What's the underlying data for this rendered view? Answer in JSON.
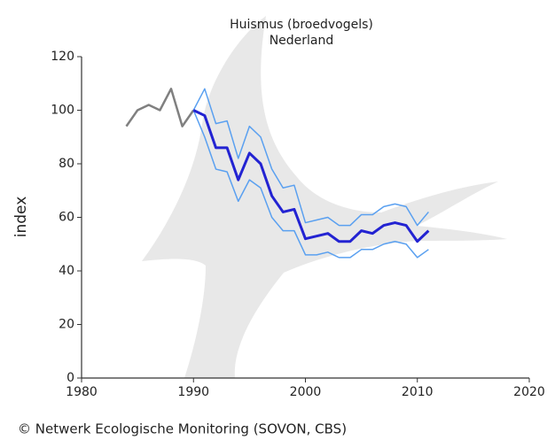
{
  "chart_data": {
    "type": "line",
    "title": "Huismus (broedvogels)",
    "subtitle": "Nederland",
    "y_label": "index",
    "footer": "© Netwerk Ecologische Monitoring (SOVON, CBS)",
    "x": [
      1984,
      1985,
      1986,
      1987,
      1988,
      1989,
      1990,
      1991,
      1992,
      1993,
      1994,
      1995,
      1996,
      1997,
      1998,
      1999,
      2000,
      2001,
      2002,
      2003,
      2004,
      2005,
      2006,
      2007,
      2008,
      2009,
      2010,
      2011
    ],
    "series": [
      {
        "color": "#808080",
        "width": 2.5,
        "values": [
          94,
          100,
          102,
          100,
          108,
          94,
          100,
          null,
          null,
          null,
          null,
          null,
          null,
          null,
          null,
          null,
          null,
          null,
          null,
          null,
          null,
          null,
          null,
          null,
          null,
          null,
          null,
          null
        ]
      },
      {
        "color": "#5aa0f0",
        "width": 1.5,
        "values": [
          null,
          null,
          null,
          null,
          null,
          null,
          100,
          108,
          95,
          96,
          82,
          94,
          90,
          78,
          71,
          72,
          58,
          59,
          60,
          57,
          57,
          61,
          61,
          64,
          65,
          64,
          57,
          62
        ]
      },
      {
        "color": "#5aa0f0",
        "width": 1.5,
        "values": [
          null,
          null,
          null,
          null,
          null,
          null,
          100,
          90,
          78,
          77,
          66,
          74,
          71,
          60,
          55,
          55,
          46,
          46,
          47,
          45,
          45,
          48,
          48,
          50,
          51,
          50,
          45,
          48
        ]
      },
      {
        "color": "#2323d2",
        "width": 3,
        "values": [
          null,
          null,
          null,
          null,
          null,
          null,
          100,
          98,
          86,
          86,
          74,
          84,
          80,
          68,
          62,
          63,
          52,
          53,
          54,
          51,
          51,
          55,
          54,
          57,
          58,
          57,
          51,
          55
        ]
      }
    ],
    "xlim": [
      1980,
      2020
    ],
    "xticks": [
      1980,
      1990,
      2000,
      2010,
      2020
    ],
    "ylim": [
      0,
      120
    ],
    "yticks": [
      0,
      20,
      40,
      60,
      80,
      100,
      120
    ]
  }
}
